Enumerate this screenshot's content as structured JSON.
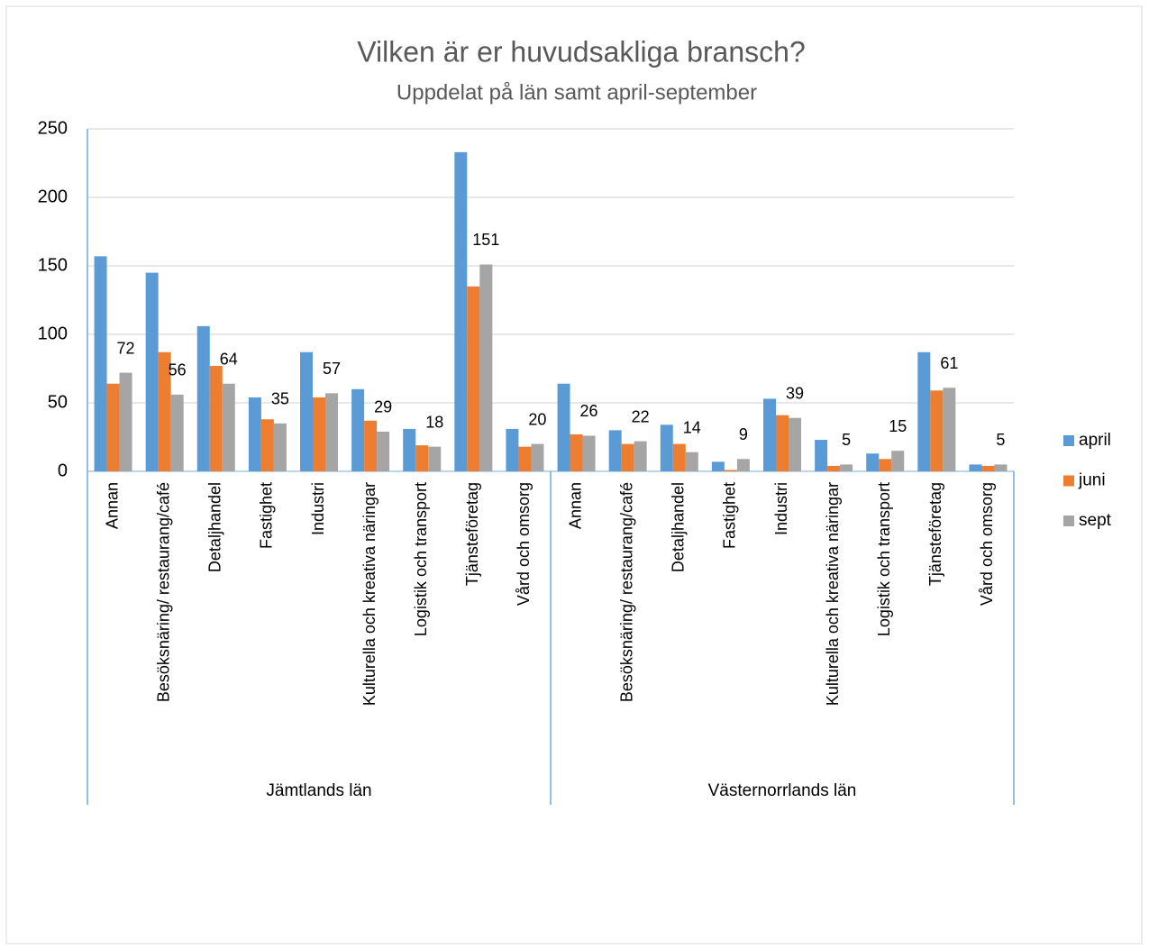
{
  "chart_data": {
    "type": "bar",
    "title": "Vilken är er huvudsakliga bransch?",
    "subtitle": "Uppdelat på län samt april-september",
    "groups": [
      "Jämtlands län",
      "Västernorrlands län"
    ],
    "categories": [
      "Annan",
      "Besöksnäring/ restaurang/café",
      "Detaljhandel",
      "Fastighet",
      "Industri",
      "Kulturella och kreativa näringar",
      "Logistik och transport",
      "Tjänsteföretag",
      "Vård och omsorg",
      "Annan",
      "Besöksnäring/ restaurang/café",
      "Detaljhandel",
      "Fastighet",
      "Industri",
      "Kulturella och kreativa näringar",
      "Logistik och transport",
      "Tjänsteföretag",
      "Vård och omsorg"
    ],
    "series": [
      {
        "name": "april",
        "color": "#5b9bd5",
        "values": [
          157,
          145,
          106,
          54,
          87,
          60,
          31,
          233,
          31,
          64,
          30,
          34,
          7,
          53,
          23,
          13,
          87,
          5
        ]
      },
      {
        "name": "juni",
        "color": "#ed7d31",
        "values": [
          64,
          87,
          77,
          38,
          54,
          37,
          19,
          135,
          18,
          27,
          20,
          20,
          1,
          41,
          4,
          9,
          59,
          4
        ]
      },
      {
        "name": "sept",
        "color": "#a5a5a5",
        "values": [
          72,
          56,
          64,
          35,
          57,
          29,
          18,
          151,
          20,
          26,
          22,
          14,
          9,
          39,
          5,
          15,
          61,
          5
        ],
        "data_labels": true
      }
    ],
    "ylim": [
      0,
      250
    ],
    "yticks": [
      0,
      50,
      100,
      150,
      200,
      250
    ],
    "grid": true,
    "legend": "right"
  }
}
